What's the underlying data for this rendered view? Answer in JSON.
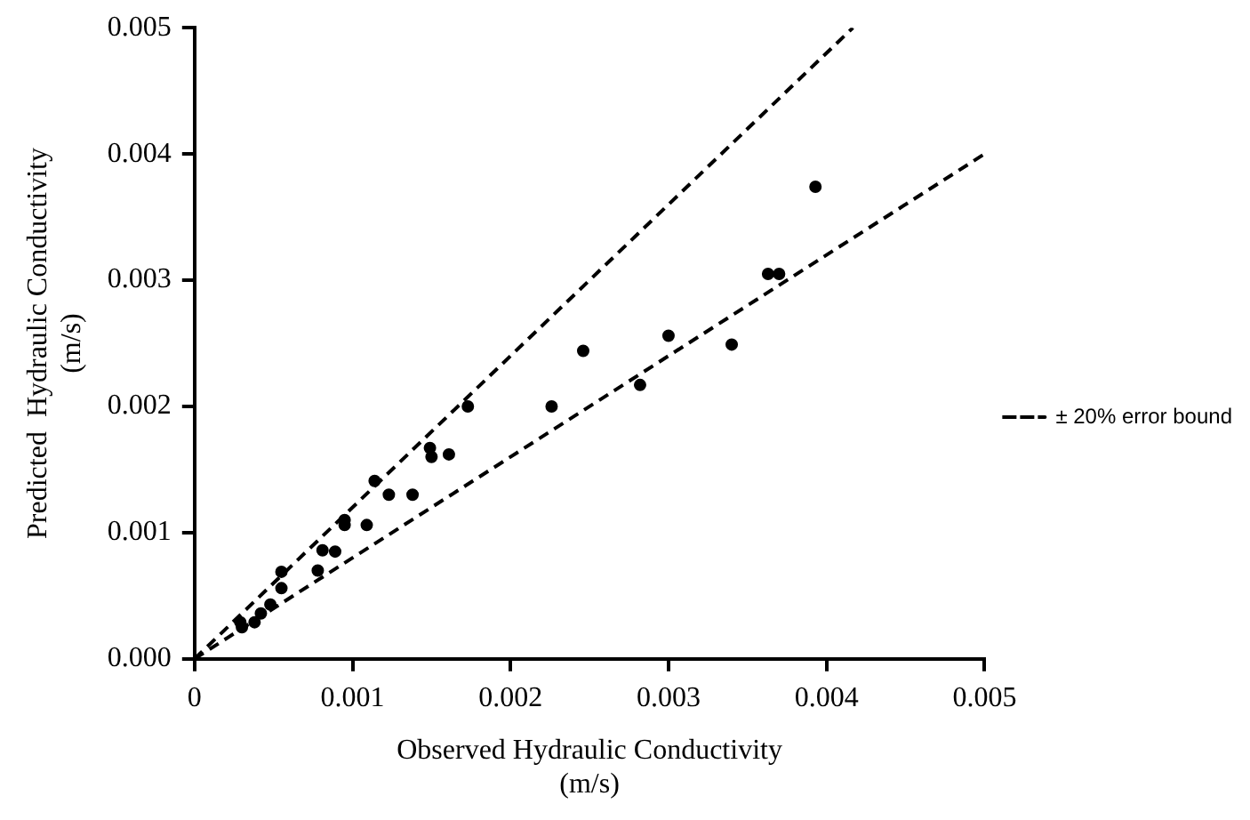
{
  "chart_data": {
    "type": "scatter",
    "xlabel": "Observed Hydraulic Conductivity\n(m/s)",
    "ylabel": "Predicted  Hydraulic Conductivity\n(m/s)",
    "xlim": [
      0,
      0.005
    ],
    "xticks": [
      0,
      0.001,
      0.002,
      0.003,
      0.004,
      0.005
    ],
    "ylim": [
      0,
      0.005
    ],
    "yticks": [
      {
        "value": 0,
        "label": "0.000"
      },
      0.001,
      0.002,
      0.003,
      0.004,
      0.005
    ],
    "grid": false,
    "legend": "right",
    "marker": "circle",
    "series": [
      {
        "type": "scatter",
        "color": "#000000",
        "x": [
          0.00393,
          0.00363,
          0.0037,
          0.0034,
          0.003,
          0.00282,
          0.00246,
          0.00226,
          0.00173,
          0.00161,
          0.0015,
          0.00149,
          0.00138,
          0.00123,
          0.00114,
          0.00109,
          0.00095,
          0.00095,
          0.00081,
          0.00089,
          0.00078,
          0.00055,
          0.00055,
          0.00048,
          0.00042,
          0.00038,
          0.0003,
          0.00029
        ],
        "values": [
          0.00374,
          0.00305,
          0.00305,
          0.00249,
          0.00256,
          0.00217,
          0.00244,
          0.002,
          0.002,
          0.00162,
          0.0016,
          0.00167,
          0.0013,
          0.0013,
          0.00141,
          0.00106,
          0.00106,
          0.0011,
          0.00086,
          0.00085,
          0.0007,
          0.00069,
          0.00056,
          0.00043,
          0.00036,
          0.00029,
          0.00025,
          0.00029
        ]
      },
      {
        "type": "line",
        "name": "± 20% error bound",
        "color": "#000000",
        "line_style": "dashed",
        "marker": "none",
        "x": [
          0,
          0.004167
        ],
        "values": [
          0,
          0.005
        ]
      },
      {
        "type": "line",
        "color": "#000000",
        "line_style": "dashed",
        "marker": "none",
        "x": [
          0,
          0.005
        ],
        "values": [
          0,
          0.004
        ]
      }
    ]
  }
}
